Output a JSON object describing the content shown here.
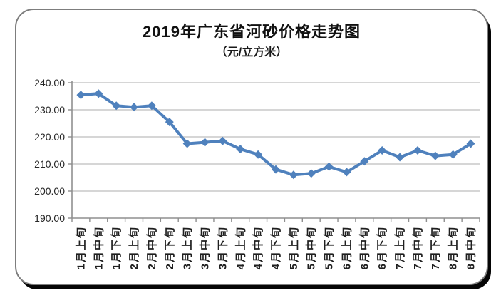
{
  "header": {
    "title": "2019年广东省河砂价格走势图",
    "subtitle": "（元/立方米）"
  },
  "chart_data": {
    "type": "line",
    "title": "2019年广东省河砂价格走势图",
    "subtitle": "（元/立方米）",
    "unit": "元/立方米",
    "categories": [
      "1月上旬",
      "1月中旬",
      "1月下旬",
      "2月上旬",
      "2月中旬",
      "2月下旬",
      "3月上旬",
      "3月中旬",
      "3月下旬",
      "4月上旬",
      "4月中旬",
      "4月下旬",
      "5月上旬",
      "5月中旬",
      "5月下旬",
      "6月上旬",
      "6月中旬",
      "6月下旬",
      "7月上旬",
      "7月中旬",
      "7月下旬",
      "8月上旬",
      "8月中旬"
    ],
    "values": [
      235.5,
      236,
      231.5,
      231,
      231.5,
      225.5,
      217.5,
      218,
      218.5,
      215.5,
      213.5,
      208,
      206,
      206.5,
      209,
      207,
      211,
      215,
      212.5,
      215,
      213,
      213.5,
      217.5
    ],
    "ylim": [
      190,
      240
    ],
    "y_tick_step": 10,
    "y_tick_decimals": 2,
    "grid": true,
    "legend": false,
    "marker": "diamond",
    "colors": {
      "line": "#4F81BD",
      "grid": "#c9c9c9",
      "axis": "#8f8f8f"
    }
  }
}
